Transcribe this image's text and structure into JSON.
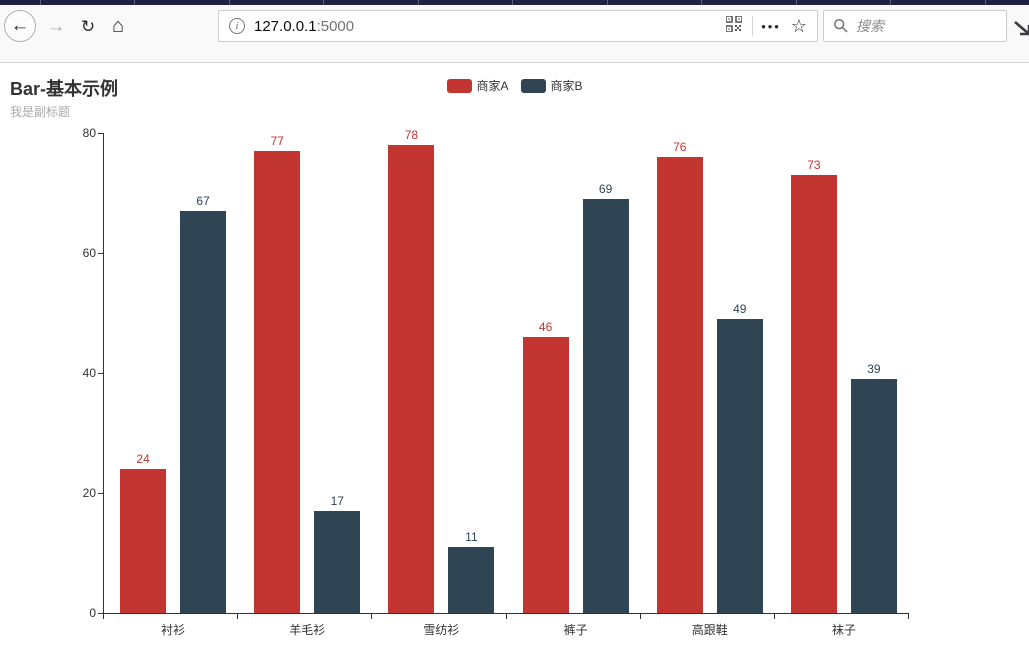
{
  "browser": {
    "toolbar": {
      "url_host": "127.0.0.1",
      "url_port": ":5000",
      "search_placeholder": "搜索"
    },
    "icons": {
      "back": "←",
      "forward": "→",
      "reload": "↻",
      "home": "⌂",
      "info": "i",
      "overflow_menu": "•••",
      "bookmark_star": "☆"
    }
  },
  "chart_data": {
    "type": "bar",
    "title": "Bar-基本示例",
    "subtitle": "我是副标题",
    "categories": [
      "衬衫",
      "羊毛衫",
      "雪纺衫",
      "裤子",
      "高跟鞋",
      "袜子"
    ],
    "series": [
      {
        "name": "商家A",
        "color": "#c23531",
        "values": [
          24,
          77,
          78,
          46,
          76,
          73
        ]
      },
      {
        "name": "商家B",
        "color": "#2f4554",
        "values": [
          67,
          17,
          11,
          69,
          49,
          39
        ]
      }
    ],
    "xlabel": "",
    "ylabel": "",
    "ylim": [
      0,
      80
    ],
    "yticks": [
      0,
      20,
      40,
      60,
      80
    ],
    "legend_position": "top-center",
    "grid": false,
    "value_labels": true,
    "axis_color": "#333333",
    "title_color": "#333333",
    "subtitle_color": "#aaaaaa"
  }
}
